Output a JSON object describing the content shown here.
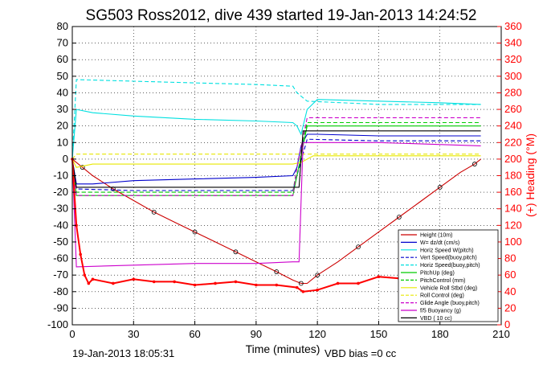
{
  "chart_data": {
    "type": "line",
    "title": "SG503 Ross2012, dive 439 started 19-Jan-2013 14:24:52",
    "xlabel": "Time (minutes)",
    "ylabel": "",
    "ylabel_right": "(+) Heading (°M)",
    "xlim": [
      0,
      210
    ],
    "ylim": [
      -100,
      80
    ],
    "ylim_right": [
      0,
      360
    ],
    "xticks": [
      0,
      30,
      60,
      90,
      120,
      150,
      180,
      210
    ],
    "yticks": [
      -100,
      -90,
      -80,
      -70,
      -60,
      -50,
      -40,
      -30,
      -20,
      -10,
      0,
      10,
      20,
      30,
      40,
      50,
      60,
      70,
      80
    ],
    "yticks_right": [
      0,
      20,
      40,
      60,
      80,
      100,
      120,
      140,
      160,
      180,
      200,
      220,
      240,
      260,
      280,
      300,
      320,
      340,
      360
    ],
    "grid": true,
    "legend_position": "bottom-right",
    "footer_left": "19-Jan-2013 18:05:31",
    "footer_right": "VBD bias =0 cc",
    "series": [
      {
        "name": "Height (10m)",
        "color": "#cc0000",
        "style": "solid",
        "x": [
          0,
          5,
          10,
          20,
          30,
          40,
          50,
          60,
          70,
          80,
          90,
          100,
          108,
          112,
          115,
          120,
          130,
          140,
          150,
          160,
          170,
          180,
          190,
          197,
          200
        ],
        "y": [
          0,
          -5,
          -10,
          -18,
          -25,
          -32,
          -38,
          -44,
          -50,
          -56,
          -62,
          -68,
          -73,
          -75,
          -75,
          -70,
          -62,
          -53,
          -44,
          -35,
          -26,
          -17,
          -8,
          -3,
          0
        ]
      },
      {
        "name": "W= dz/dt (cm/s)",
        "color": "#0000cc",
        "style": "solid",
        "x": [
          0,
          2,
          10,
          30,
          60,
          90,
          108,
          110,
          112,
          115,
          120,
          150,
          180,
          200
        ],
        "y": [
          0,
          -15,
          -15,
          -13,
          -12,
          -11,
          -10,
          -5,
          8,
          15,
          15,
          14,
          14,
          14
        ]
      },
      {
        "name": "Horiz Speed W(pitch)",
        "color": "#00e0e0",
        "style": "solid",
        "x": [
          0,
          2,
          10,
          30,
          60,
          90,
          108,
          110,
          112,
          115,
          120,
          150,
          180,
          200
        ],
        "y": [
          0,
          30,
          28,
          26,
          24,
          23,
          22,
          20,
          15,
          30,
          36,
          35,
          34,
          33
        ]
      },
      {
        "name": "Vert Speed(buoy,pitch)",
        "color": "#0000cc",
        "style": "dashed",
        "x": [
          0,
          2,
          30,
          60,
          90,
          108,
          110,
          115,
          150,
          200
        ],
        "y": [
          0,
          -18,
          -19,
          -19,
          -19,
          -19,
          -10,
          12,
          11,
          11
        ]
      },
      {
        "name": "Horiz Speed(buoy,pitch)",
        "color": "#00e0e0",
        "style": "dashed",
        "x": [
          0,
          2,
          30,
          60,
          90,
          108,
          110,
          115,
          150,
          200
        ],
        "y": [
          0,
          48,
          47,
          46,
          45,
          44,
          40,
          35,
          33,
          33
        ]
      },
      {
        "name": "PitchUp (deg)",
        "color": "#00cc00",
        "style": "solid",
        "x": [
          0,
          2,
          30,
          60,
          90,
          108,
          110,
          115,
          150,
          200
        ],
        "y": [
          0,
          -22,
          -22,
          -22,
          -22,
          -22,
          -10,
          20,
          20,
          20
        ]
      },
      {
        "name": "PitchControl (mm)",
        "color": "#00cc00",
        "style": "dashed",
        "x": [
          0,
          2,
          30,
          60,
          90,
          108,
          110,
          115,
          150,
          200
        ],
        "y": [
          0,
          -20,
          -20,
          -20,
          -20,
          -20,
          -5,
          22,
          22,
          22
        ]
      },
      {
        "name": "Vehicle Roll Stbd (deg)",
        "color": "#e8e800",
        "style": "solid",
        "x": [
          0,
          2,
          10,
          30,
          60,
          90,
          108,
          112,
          118,
          150,
          180,
          200
        ],
        "y": [
          0,
          -5,
          -3,
          -3,
          -3,
          -3,
          -3,
          -2,
          2,
          2,
          2,
          2
        ]
      },
      {
        "name": "Roll Control (deg)",
        "color": "#e8e800",
        "style": "dashed",
        "x": [
          0,
          2,
          30,
          60,
          90,
          108,
          112,
          118,
          150,
          200
        ],
        "y": [
          0,
          3,
          3,
          3,
          3,
          3,
          3,
          3,
          3,
          3
        ]
      },
      {
        "name": "Glide Angle (buoy,pitch)",
        "color": "#cc00cc",
        "style": "dashed",
        "x": [
          0,
          2,
          30,
          60,
          90,
          108,
          110,
          115,
          150,
          200
        ],
        "y": [
          0,
          -22,
          -22,
          -22,
          -22,
          -22,
          -5,
          25,
          25,
          25
        ]
      },
      {
        "name": "f/5 Buoyancy (g)",
        "color": "#cc00cc",
        "style": "solid",
        "x": [
          0,
          2,
          30,
          60,
          90,
          108,
          111,
          113,
          150,
          200
        ],
        "y": [
          0,
          -65,
          -64,
          -63,
          -63,
          -62,
          -62,
          10,
          10,
          8
        ]
      },
      {
        "name": "VBD ( 10 cc)",
        "color": "#000000",
        "style": "solid",
        "x": [
          0,
          2,
          30,
          60,
          90,
          108,
          111,
          113,
          150,
          200
        ],
        "y": [
          0,
          -17,
          -17,
          -17,
          -17,
          -17,
          -17,
          17,
          17,
          17
        ]
      }
    ],
    "heading_series": {
      "name": "Heading",
      "color": "#ff0000",
      "axis": "right",
      "x": [
        0,
        2,
        4,
        6,
        8,
        10,
        20,
        30,
        40,
        50,
        60,
        70,
        80,
        90,
        100,
        110,
        113,
        120,
        130,
        140,
        150,
        160,
        165
      ],
      "y": [
        200,
        120,
        85,
        60,
        50,
        55,
        50,
        55,
        52,
        52,
        48,
        50,
        52,
        48,
        48,
        45,
        40,
        42,
        50,
        50,
        58,
        56,
        55
      ]
    }
  }
}
